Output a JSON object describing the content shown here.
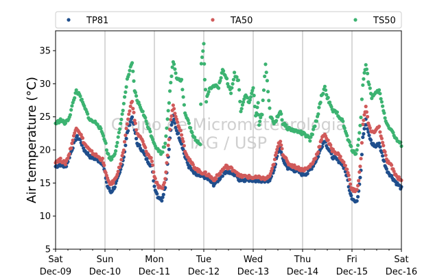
{
  "chart_data": {
    "type": "scatter",
    "ylabel": "Air temperature (°C)",
    "ylim": [
      5,
      38
    ],
    "yticks": [
      5,
      10,
      15,
      20,
      25,
      30,
      35
    ],
    "xlim": [
      0,
      7
    ],
    "xticks": [
      {
        "x": 0,
        "day": "Sat",
        "date": "Dec-09"
      },
      {
        "x": 1,
        "day": "Sun",
        "date": "Dec-10"
      },
      {
        "x": 2,
        "day": "Mon",
        "date": "Dec-11"
      },
      {
        "x": 3,
        "day": "Tue",
        "date": "Dec-12"
      },
      {
        "x": 4,
        "day": "Wed",
        "date": "Dec-13"
      },
      {
        "x": 5,
        "day": "Thu",
        "date": "Dec-14"
      },
      {
        "x": 6,
        "day": "Fri",
        "date": "Dec-15"
      },
      {
        "x": 7,
        "day": "Sat",
        "date": "Dec-16"
      }
    ],
    "x_unit_note": "x in days since Sat Dec-09 00:00",
    "grid": "vertical",
    "legend_position": "top",
    "watermark": [
      "Grupo de Micrometeorologia",
      "IAG / USP"
    ],
    "series": [
      {
        "name": "TP81",
        "color": "#1f4e8c",
        "points": [
          [
            0.0,
            17.5
          ],
          [
            0.1,
            17.8
          ],
          [
            0.2,
            17.4
          ],
          [
            0.28,
            19.0
          ],
          [
            0.35,
            20.5
          ],
          [
            0.42,
            22.0
          ],
          [
            0.5,
            21.5
          ],
          [
            0.58,
            20.0
          ],
          [
            0.7,
            19.0
          ],
          [
            0.85,
            18.5
          ],
          [
            0.95,
            18.0
          ],
          [
            1.0,
            16.5
          ],
          [
            1.05,
            14.5
          ],
          [
            1.12,
            13.6
          ],
          [
            1.2,
            14.5
          ],
          [
            1.3,
            16.5
          ],
          [
            1.38,
            19.0
          ],
          [
            1.45,
            22.5
          ],
          [
            1.5,
            24.0
          ],
          [
            1.55,
            25.0
          ],
          [
            1.6,
            23.0
          ],
          [
            1.65,
            21.0
          ],
          [
            1.75,
            20.0
          ],
          [
            1.85,
            18.5
          ],
          [
            1.95,
            17.5
          ],
          [
            2.0,
            14.5
          ],
          [
            2.07,
            13.0
          ],
          [
            2.15,
            12.5
          ],
          [
            2.22,
            14.5
          ],
          [
            2.28,
            19.0
          ],
          [
            2.33,
            23.0
          ],
          [
            2.38,
            25.0
          ],
          [
            2.45,
            23.0
          ],
          [
            2.55,
            21.0
          ],
          [
            2.62,
            19.0
          ],
          [
            2.7,
            17.5
          ],
          [
            2.8,
            16.5
          ],
          [
            2.9,
            16.0
          ],
          [
            3.0,
            16.0
          ],
          [
            3.1,
            15.5
          ],
          [
            3.2,
            14.8
          ],
          [
            3.3,
            15.5
          ],
          [
            3.38,
            16.3
          ],
          [
            3.45,
            16.8
          ],
          [
            3.55,
            16.5
          ],
          [
            3.65,
            16.2
          ],
          [
            3.72,
            15.5
          ],
          [
            3.85,
            15.5
          ],
          [
            4.0,
            15.5
          ],
          [
            4.15,
            15.3
          ],
          [
            4.25,
            15.2
          ],
          [
            4.35,
            15.6
          ],
          [
            4.42,
            17.0
          ],
          [
            4.5,
            19.5
          ],
          [
            4.55,
            20.5
          ],
          [
            4.6,
            18.5
          ],
          [
            4.7,
            17.3
          ],
          [
            4.8,
            17.0
          ],
          [
            4.9,
            16.8
          ],
          [
            5.0,
            16.3
          ],
          [
            5.1,
            16.5
          ],
          [
            5.2,
            17.5
          ],
          [
            5.3,
            18.8
          ],
          [
            5.38,
            20.5
          ],
          [
            5.45,
            21.5
          ],
          [
            5.5,
            20.5
          ],
          [
            5.6,
            19.0
          ],
          [
            5.7,
            18.5
          ],
          [
            5.8,
            18.0
          ],
          [
            5.9,
            16.0
          ],
          [
            5.95,
            14.0
          ],
          [
            6.0,
            12.8
          ],
          [
            6.08,
            12.0
          ],
          [
            6.12,
            13.0
          ],
          [
            6.18,
            17.0
          ],
          [
            6.22,
            22.0
          ],
          [
            6.28,
            24.5
          ],
          [
            6.33,
            22.5
          ],
          [
            6.4,
            21.0
          ],
          [
            6.48,
            20.5
          ],
          [
            6.55,
            21.0
          ],
          [
            6.62,
            19.0
          ],
          [
            6.7,
            17.0
          ],
          [
            6.8,
            16.0
          ],
          [
            6.9,
            15.0
          ],
          [
            7.0,
            14.2
          ]
        ]
      },
      {
        "name": "TA50",
        "color": "#d05a5a",
        "points": [
          [
            0.0,
            18.3
          ],
          [
            0.1,
            18.5
          ],
          [
            0.2,
            18.0
          ],
          [
            0.28,
            19.5
          ],
          [
            0.35,
            21.5
          ],
          [
            0.42,
            23.5
          ],
          [
            0.5,
            22.5
          ],
          [
            0.58,
            21.0
          ],
          [
            0.7,
            19.8
          ],
          [
            0.85,
            19.0
          ],
          [
            0.95,
            18.5
          ],
          [
            1.0,
            17.0
          ],
          [
            1.05,
            15.5
          ],
          [
            1.12,
            14.8
          ],
          [
            1.2,
            15.5
          ],
          [
            1.3,
            17.5
          ],
          [
            1.38,
            20.0
          ],
          [
            1.45,
            24.0
          ],
          [
            1.5,
            26.0
          ],
          [
            1.55,
            27.5
          ],
          [
            1.6,
            24.5
          ],
          [
            1.65,
            22.5
          ],
          [
            1.75,
            21.5
          ],
          [
            1.85,
            19.5
          ],
          [
            1.95,
            18.5
          ],
          [
            2.0,
            16.0
          ],
          [
            2.07,
            14.5
          ],
          [
            2.15,
            14.0
          ],
          [
            2.22,
            15.5
          ],
          [
            2.28,
            20.5
          ],
          [
            2.33,
            24.5
          ],
          [
            2.38,
            27.0
          ],
          [
            2.45,
            24.5
          ],
          [
            2.55,
            22.5
          ],
          [
            2.62,
            20.0
          ],
          [
            2.7,
            18.5
          ],
          [
            2.8,
            17.5
          ],
          [
            2.9,
            16.8
          ],
          [
            3.0,
            16.5
          ],
          [
            3.1,
            16.2
          ],
          [
            3.2,
            15.5
          ],
          [
            3.3,
            16.2
          ],
          [
            3.38,
            17.0
          ],
          [
            3.45,
            17.5
          ],
          [
            3.55,
            17.2
          ],
          [
            3.65,
            16.8
          ],
          [
            3.72,
            16.0
          ],
          [
            3.85,
            16.0
          ],
          [
            4.0,
            15.8
          ],
          [
            4.15,
            15.8
          ],
          [
            4.25,
            15.6
          ],
          [
            4.35,
            16.2
          ],
          [
            4.42,
            18.0
          ],
          [
            4.5,
            20.5
          ],
          [
            4.55,
            21.5
          ],
          [
            4.6,
            19.5
          ],
          [
            4.7,
            18.0
          ],
          [
            4.8,
            17.6
          ],
          [
            4.9,
            17.3
          ],
          [
            5.0,
            17.0
          ],
          [
            5.1,
            17.2
          ],
          [
            5.2,
            18.0
          ],
          [
            5.3,
            19.5
          ],
          [
            5.38,
            21.5
          ],
          [
            5.45,
            22.5
          ],
          [
            5.5,
            21.5
          ],
          [
            5.6,
            20.0
          ],
          [
            5.7,
            19.5
          ],
          [
            5.8,
            18.5
          ],
          [
            5.9,
            17.0
          ],
          [
            5.95,
            15.5
          ],
          [
            6.0,
            14.0
          ],
          [
            6.08,
            13.8
          ],
          [
            6.12,
            14.5
          ],
          [
            6.18,
            18.5
          ],
          [
            6.22,
            24.0
          ],
          [
            6.28,
            26.5
          ],
          [
            6.33,
            24.0
          ],
          [
            6.4,
            22.5
          ],
          [
            6.48,
            23.0
          ],
          [
            6.55,
            23.5
          ],
          [
            6.62,
            21.0
          ],
          [
            6.7,
            18.5
          ],
          [
            6.8,
            17.5
          ],
          [
            6.9,
            16.0
          ],
          [
            7.0,
            15.5
          ]
        ]
      },
      {
        "name": "TS50",
        "color": "#3cb371",
        "points": [
          [
            0.0,
            24.0
          ],
          [
            0.1,
            24.5
          ],
          [
            0.2,
            24.0
          ],
          [
            0.28,
            25.0
          ],
          [
            0.35,
            27.0
          ],
          [
            0.42,
            29.0
          ],
          [
            0.5,
            28.0
          ],
          [
            0.58,
            26.5
          ],
          [
            0.7,
            24.5
          ],
          [
            0.85,
            24.0
          ],
          [
            0.95,
            22.5
          ],
          [
            1.0,
            21.5
          ],
          [
            1.05,
            19.5
          ],
          [
            1.12,
            18.5
          ],
          [
            1.2,
            19.5
          ],
          [
            1.3,
            23.0
          ],
          [
            1.38,
            27.0
          ],
          [
            1.45,
            30.5
          ],
          [
            1.5,
            32.0
          ],
          [
            1.55,
            33.0
          ],
          [
            1.6,
            29.0
          ],
          [
            1.65,
            27.5
          ],
          [
            1.75,
            26.0
          ],
          [
            1.85,
            24.0
          ],
          [
            1.95,
            22.0
          ],
          [
            2.0,
            21.0
          ],
          [
            2.07,
            20.0
          ],
          [
            2.15,
            19.5
          ],
          [
            2.22,
            21.0
          ],
          [
            2.28,
            26.0
          ],
          [
            2.33,
            30.0
          ],
          [
            2.38,
            33.5
          ],
          [
            2.45,
            31.0
          ],
          [
            2.55,
            30.5
          ],
          [
            2.62,
            25.5
          ],
          [
            2.7,
            24.0
          ],
          [
            2.78,
            22.0
          ],
          [
            2.85,
            21.5
          ],
          [
            2.93,
            21.0
          ],
          [
            2.95,
            33.0
          ],
          [
            3.0,
            36.0
          ],
          [
            3.02,
            30.5
          ],
          [
            3.05,
            27.5
          ],
          [
            3.1,
            29.0
          ],
          [
            3.18,
            29.5
          ],
          [
            3.25,
            30.0
          ],
          [
            3.3,
            29.5
          ],
          [
            3.38,
            32.0
          ],
          [
            3.45,
            31.0
          ],
          [
            3.55,
            28.5
          ],
          [
            3.62,
            31.5
          ],
          [
            3.7,
            30.5
          ],
          [
            3.75,
            26.0
          ],
          [
            3.85,
            28.5
          ],
          [
            3.92,
            27.0
          ],
          [
            4.0,
            29.5
          ],
          [
            4.05,
            25.0
          ],
          [
            4.1,
            27.0
          ],
          [
            4.12,
            24.0
          ],
          [
            4.18,
            25.5
          ],
          [
            4.25,
            33.0
          ],
          [
            4.3,
            29.0
          ],
          [
            4.35,
            25.0
          ],
          [
            4.42,
            24.0
          ],
          [
            4.5,
            25.0
          ],
          [
            4.55,
            26.0
          ],
          [
            4.6,
            24.0
          ],
          [
            4.7,
            23.3
          ],
          [
            4.8,
            23.0
          ],
          [
            4.9,
            22.8
          ],
          [
            5.0,
            22.5
          ],
          [
            5.1,
            22.0
          ],
          [
            5.15,
            21.5
          ],
          [
            5.2,
            22.5
          ],
          [
            5.3,
            25.0
          ],
          [
            5.38,
            28.0
          ],
          [
            5.45,
            29.5
          ],
          [
            5.5,
            28.0
          ],
          [
            5.6,
            26.0
          ],
          [
            5.7,
            25.5
          ],
          [
            5.8,
            24.5
          ],
          [
            5.9,
            22.0
          ],
          [
            5.95,
            21.0
          ],
          [
            6.0,
            20.0
          ],
          [
            6.08,
            19.5
          ],
          [
            6.12,
            20.5
          ],
          [
            6.18,
            25.0
          ],
          [
            6.22,
            30.0
          ],
          [
            6.28,
            33.0
          ],
          [
            6.33,
            30.5
          ],
          [
            6.4,
            28.0
          ],
          [
            6.48,
            28.5
          ],
          [
            6.55,
            29.0
          ],
          [
            6.62,
            26.5
          ],
          [
            6.7,
            24.0
          ],
          [
            6.8,
            23.0
          ],
          [
            6.9,
            21.5
          ],
          [
            7.0,
            20.8
          ]
        ]
      }
    ]
  }
}
